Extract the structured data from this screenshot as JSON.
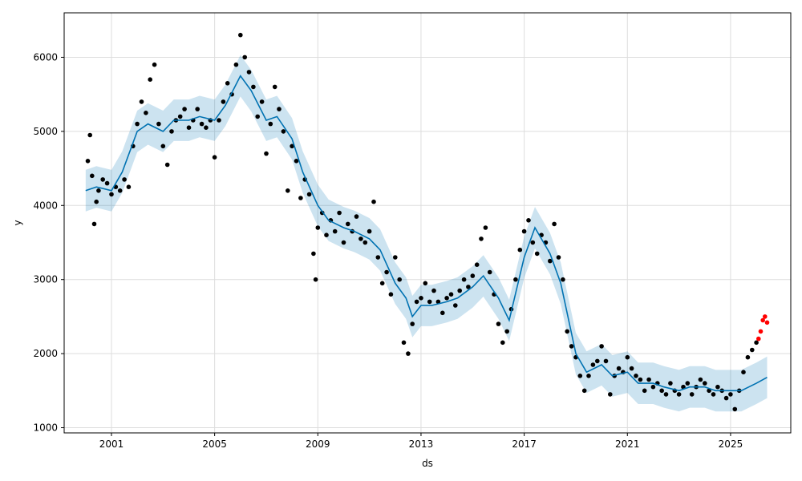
{
  "chart_data": {
    "type": "scatter",
    "xlabel": "ds",
    "ylabel": "y",
    "x_ticks": [
      "2001",
      "2005",
      "2009",
      "2013",
      "2017",
      "2021",
      "2025"
    ],
    "y_ticks": [
      1000,
      2000,
      3000,
      4000,
      5000,
      6000
    ],
    "xlim": [
      "1999-03-01",
      "2027-05-01"
    ],
    "ylim": [
      930,
      6600
    ],
    "grid": true,
    "colors": {
      "observed": "#000000",
      "recent": "#ff0000",
      "forecast": "#0072b2",
      "uncertainty_band": "#0072b2"
    },
    "series": [
      {
        "role": "observed",
        "points": [
          [
            "2000-02-01",
            4600
          ],
          [
            "2000-03-01",
            4950
          ],
          [
            "2000-04-01",
            4400
          ],
          [
            "2000-05-01",
            3750
          ],
          [
            "2000-06-01",
            4050
          ],
          [
            "2000-07-01",
            4200
          ],
          [
            "2000-09-01",
            4350
          ],
          [
            "2000-11-01",
            4300
          ],
          [
            "2001-01-01",
            4150
          ],
          [
            "2001-03-01",
            4250
          ],
          [
            "2001-05-01",
            4200
          ],
          [
            "2001-07-01",
            4350
          ],
          [
            "2001-09-01",
            4250
          ],
          [
            "2001-11-01",
            4800
          ],
          [
            "2002-01-01",
            5100
          ],
          [
            "2002-03-01",
            5400
          ],
          [
            "2002-05-01",
            5250
          ],
          [
            "2002-07-01",
            5700
          ],
          [
            "2002-09-01",
            5900
          ],
          [
            "2002-11-01",
            5100
          ],
          [
            "2003-01-01",
            4800
          ],
          [
            "2003-03-01",
            4550
          ],
          [
            "2003-05-01",
            5000
          ],
          [
            "2003-07-01",
            5150
          ],
          [
            "2003-09-01",
            5200
          ],
          [
            "2003-11-01",
            5300
          ],
          [
            "2004-01-01",
            5050
          ],
          [
            "2004-03-01",
            5150
          ],
          [
            "2004-05-01",
            5300
          ],
          [
            "2004-07-01",
            5100
          ],
          [
            "2004-09-01",
            5050
          ],
          [
            "2004-11-01",
            5150
          ],
          [
            "2005-01-01",
            4650
          ],
          [
            "2005-03-01",
            5150
          ],
          [
            "2005-05-01",
            5400
          ],
          [
            "2005-07-01",
            5650
          ],
          [
            "2005-09-01",
            5500
          ],
          [
            "2005-11-01",
            5900
          ],
          [
            "2006-01-01",
            6300
          ],
          [
            "2006-03-01",
            6000
          ],
          [
            "2006-05-01",
            5800
          ],
          [
            "2006-07-01",
            5600
          ],
          [
            "2006-09-01",
            5200
          ],
          [
            "2006-11-01",
            5400
          ],
          [
            "2007-01-01",
            4700
          ],
          [
            "2007-03-01",
            5100
          ],
          [
            "2007-05-01",
            5600
          ],
          [
            "2007-07-01",
            5300
          ],
          [
            "2007-09-01",
            5000
          ],
          [
            "2007-11-01",
            4200
          ],
          [
            "2008-01-01",
            4800
          ],
          [
            "2008-03-01",
            4600
          ],
          [
            "2008-05-01",
            4100
          ],
          [
            "2008-07-01",
            4350
          ],
          [
            "2008-09-01",
            4150
          ],
          [
            "2008-11-01",
            3350
          ],
          [
            "2008-12-01",
            3000
          ],
          [
            "2009-01-01",
            3700
          ],
          [
            "2009-03-01",
            3900
          ],
          [
            "2009-05-01",
            3600
          ],
          [
            "2009-07-01",
            3800
          ],
          [
            "2009-09-01",
            3650
          ],
          [
            "2009-11-01",
            3900
          ],
          [
            "2010-01-01",
            3500
          ],
          [
            "2010-03-01",
            3750
          ],
          [
            "2010-05-01",
            3650
          ],
          [
            "2010-07-01",
            3850
          ],
          [
            "2010-09-01",
            3550
          ],
          [
            "2010-11-01",
            3500
          ],
          [
            "2011-01-01",
            3650
          ],
          [
            "2011-03-01",
            4050
          ],
          [
            "2011-05-01",
            3300
          ],
          [
            "2011-07-01",
            2950
          ],
          [
            "2011-09-01",
            3100
          ],
          [
            "2011-11-01",
            2800
          ],
          [
            "2012-01-01",
            3300
          ],
          [
            "2012-03-01",
            3000
          ],
          [
            "2012-05-01",
            2150
          ],
          [
            "2012-07-01",
            2000
          ],
          [
            "2012-09-01",
            2400
          ],
          [
            "2012-11-01",
            2700
          ],
          [
            "2013-01-01",
            2750
          ],
          [
            "2013-03-01",
            2950
          ],
          [
            "2013-05-01",
            2700
          ],
          [
            "2013-07-01",
            2850
          ],
          [
            "2013-09-01",
            2700
          ],
          [
            "2013-11-01",
            2550
          ],
          [
            "2014-01-01",
            2750
          ],
          [
            "2014-03-01",
            2800
          ],
          [
            "2014-05-01",
            2650
          ],
          [
            "2014-07-01",
            2850
          ],
          [
            "2014-09-01",
            3000
          ],
          [
            "2014-11-01",
            2900
          ],
          [
            "2015-01-01",
            3050
          ],
          [
            "2015-03-01",
            3200
          ],
          [
            "2015-05-01",
            3550
          ],
          [
            "2015-07-01",
            3700
          ],
          [
            "2015-09-01",
            3100
          ],
          [
            "2015-11-01",
            2800
          ],
          [
            "2016-01-01",
            2400
          ],
          [
            "2016-03-01",
            2150
          ],
          [
            "2016-05-01",
            2300
          ],
          [
            "2016-07-01",
            2600
          ],
          [
            "2016-09-01",
            3000
          ],
          [
            "2016-11-01",
            3400
          ],
          [
            "2017-01-01",
            3650
          ],
          [
            "2017-03-01",
            3800
          ],
          [
            "2017-05-01",
            3500
          ],
          [
            "2017-07-01",
            3350
          ],
          [
            "2017-09-01",
            3600
          ],
          [
            "2017-11-01",
            3500
          ],
          [
            "2018-01-01",
            3250
          ],
          [
            "2018-03-01",
            3750
          ],
          [
            "2018-05-01",
            3300
          ],
          [
            "2018-07-01",
            3000
          ],
          [
            "2018-09-01",
            2300
          ],
          [
            "2018-11-01",
            2100
          ],
          [
            "2019-01-01",
            1950
          ],
          [
            "2019-03-01",
            1700
          ],
          [
            "2019-05-01",
            1500
          ],
          [
            "2019-07-01",
            1700
          ],
          [
            "2019-09-01",
            1850
          ],
          [
            "2019-11-01",
            1900
          ],
          [
            "2020-01-01",
            2100
          ],
          [
            "2020-03-01",
            1900
          ],
          [
            "2020-05-01",
            1450
          ],
          [
            "2020-07-01",
            1700
          ],
          [
            "2020-09-01",
            1800
          ],
          [
            "2020-11-01",
            1750
          ],
          [
            "2021-01-01",
            1950
          ],
          [
            "2021-03-01",
            1800
          ],
          [
            "2021-05-01",
            1700
          ],
          [
            "2021-07-01",
            1650
          ],
          [
            "2021-09-01",
            1500
          ],
          [
            "2021-11-01",
            1650
          ],
          [
            "2022-01-01",
            1550
          ],
          [
            "2022-03-01",
            1600
          ],
          [
            "2022-05-01",
            1500
          ],
          [
            "2022-07-01",
            1450
          ],
          [
            "2022-09-01",
            1600
          ],
          [
            "2022-11-01",
            1500
          ],
          [
            "2023-01-01",
            1450
          ],
          [
            "2023-03-01",
            1550
          ],
          [
            "2023-05-01",
            1600
          ],
          [
            "2023-07-01",
            1450
          ],
          [
            "2023-09-01",
            1550
          ],
          [
            "2023-11-01",
            1650
          ],
          [
            "2024-01-01",
            1600
          ],
          [
            "2024-03-01",
            1500
          ],
          [
            "2024-05-01",
            1450
          ],
          [
            "2024-07-01",
            1550
          ],
          [
            "2024-09-01",
            1500
          ],
          [
            "2024-11-01",
            1400
          ],
          [
            "2025-01-01",
            1450
          ],
          [
            "2025-03-01",
            1250
          ],
          [
            "2025-05-01",
            1500
          ],
          [
            "2025-07-01",
            1750
          ],
          [
            "2025-09-01",
            1950
          ],
          [
            "2025-11-01",
            2050
          ],
          [
            "2026-01-01",
            2150
          ]
        ]
      },
      {
        "role": "recent",
        "points": [
          [
            "2026-02-01",
            2200
          ],
          [
            "2026-03-01",
            2300
          ],
          [
            "2026-04-01",
            2450
          ],
          [
            "2026-05-01",
            2500
          ],
          [
            "2026-06-01",
            2420
          ]
        ]
      },
      {
        "role": "forecast",
        "points": [
          [
            "2000-01-01",
            4200
          ],
          [
            "2000-06-01",
            4250
          ],
          [
            "2001-01-01",
            4200
          ],
          [
            "2001-06-01",
            4450
          ],
          [
            "2002-01-01",
            5000
          ],
          [
            "2002-06-01",
            5100
          ],
          [
            "2003-01-01",
            5000
          ],
          [
            "2003-06-01",
            5150
          ],
          [
            "2004-01-01",
            5150
          ],
          [
            "2004-06-01",
            5200
          ],
          [
            "2005-01-01",
            5150
          ],
          [
            "2005-06-01",
            5350
          ],
          [
            "2006-01-01",
            5750
          ],
          [
            "2006-06-01",
            5550
          ],
          [
            "2007-01-01",
            5150
          ],
          [
            "2007-06-01",
            5200
          ],
          [
            "2008-01-01",
            4900
          ],
          [
            "2008-06-01",
            4450
          ],
          [
            "2009-01-01",
            4000
          ],
          [
            "2009-06-01",
            3800
          ],
          [
            "2010-01-01",
            3700
          ],
          [
            "2010-06-01",
            3650
          ],
          [
            "2011-01-01",
            3550
          ],
          [
            "2011-06-01",
            3400
          ],
          [
            "2012-01-01",
            2950
          ],
          [
            "2012-06-01",
            2750
          ],
          [
            "2012-09-01",
            2500
          ],
          [
            "2013-01-01",
            2650
          ],
          [
            "2013-06-01",
            2650
          ],
          [
            "2014-01-01",
            2700
          ],
          [
            "2014-06-01",
            2750
          ],
          [
            "2015-01-01",
            2900
          ],
          [
            "2015-06-01",
            3050
          ],
          [
            "2016-01-01",
            2750
          ],
          [
            "2016-06-01",
            2450
          ],
          [
            "2017-01-01",
            3300
          ],
          [
            "2017-06-01",
            3700
          ],
          [
            "2018-01-01",
            3350
          ],
          [
            "2018-06-01",
            2950
          ],
          [
            "2019-01-01",
            2000
          ],
          [
            "2019-06-01",
            1750
          ],
          [
            "2020-01-01",
            1850
          ],
          [
            "2020-06-01",
            1700
          ],
          [
            "2021-01-01",
            1750
          ],
          [
            "2021-06-01",
            1600
          ],
          [
            "2022-01-01",
            1600
          ],
          [
            "2022-06-01",
            1550
          ],
          [
            "2023-01-01",
            1500
          ],
          [
            "2023-06-01",
            1550
          ],
          [
            "2024-01-01",
            1550
          ],
          [
            "2024-06-01",
            1500
          ],
          [
            "2025-01-01",
            1500
          ],
          [
            "2025-06-01",
            1500
          ],
          [
            "2026-01-01",
            1600
          ],
          [
            "2026-06-01",
            1680
          ]
        ]
      },
      {
        "role": "uncertainty_band",
        "offset": 280
      }
    ]
  }
}
